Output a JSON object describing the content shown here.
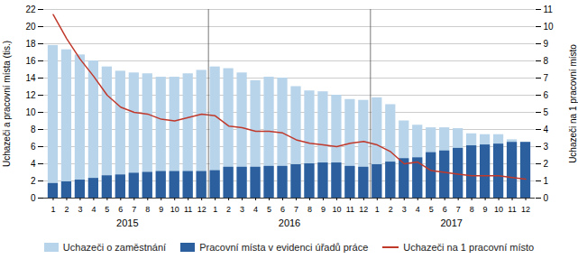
{
  "chart_data": {
    "type": "bar",
    "categories": [
      "1",
      "2",
      "3",
      "4",
      "5",
      "6",
      "7",
      "8",
      "9",
      "10",
      "11",
      "12",
      "1",
      "2",
      "3",
      "4",
      "5",
      "6",
      "7",
      "8",
      "9",
      "10",
      "11",
      "12",
      "1",
      "2",
      "3",
      "4",
      "5",
      "6",
      "7",
      "8",
      "9",
      "10",
      "11",
      "12"
    ],
    "series": [
      {
        "name": "Uchazeči o zaměstnání",
        "type": "bar",
        "color": "#b8d4ea",
        "values": [
          17.8,
          17.3,
          16.7,
          16.0,
          15.3,
          14.8,
          14.6,
          14.5,
          14.1,
          14.1,
          14.5,
          14.9,
          15.3,
          15.1,
          14.6,
          13.7,
          14.1,
          14.0,
          13.0,
          12.5,
          12.4,
          12.0,
          11.5,
          11.4,
          11.7,
          10.9,
          9.0,
          8.5,
          8.2,
          8.2,
          8.1,
          7.5,
          7.4,
          7.4,
          6.8,
          6.5
        ]
      },
      {
        "name": "Pracovní místa v evidenci úřadů práce",
        "type": "bar",
        "color": "#2b5f9e",
        "values": [
          1.7,
          1.9,
          2.1,
          2.3,
          2.6,
          2.7,
          2.9,
          3.0,
          3.1,
          3.1,
          3.1,
          3.1,
          3.2,
          3.6,
          3.6,
          3.6,
          3.7,
          3.7,
          3.9,
          4.0,
          4.1,
          4.1,
          3.7,
          3.6,
          3.9,
          4.2,
          4.6,
          4.7,
          5.3,
          5.5,
          5.8,
          6.1,
          6.2,
          6.3,
          6.5,
          6.5
        ]
      },
      {
        "name": "Uchazeči na 1 pracovní místo",
        "type": "line",
        "color": "#c0392b",
        "axis": "y2",
        "values": [
          10.7,
          9.3,
          8.1,
          7.1,
          6.0,
          5.3,
          5.0,
          4.9,
          4.6,
          4.5,
          4.7,
          4.9,
          4.8,
          4.2,
          4.1,
          3.9,
          3.9,
          3.8,
          3.4,
          3.2,
          3.1,
          3.0,
          3.2,
          3.3,
          3.1,
          2.7,
          2.0,
          2.1,
          1.6,
          1.5,
          1.4,
          1.3,
          1.3,
          1.3,
          1.2,
          1.1
        ]
      }
    ],
    "ylabel": "Uchazeči a pracovní místa (tis.)",
    "y2label": "Uchazeči na 1 pracovní místo",
    "ylim": [
      0,
      22
    ],
    "yticks": [
      0,
      2,
      4,
      6,
      8,
      10,
      12,
      14,
      16,
      18,
      20,
      22
    ],
    "y2lim": [
      0,
      11
    ],
    "y2ticks": [
      0,
      1,
      2,
      3,
      4,
      5,
      6,
      7,
      8,
      9,
      10,
      11
    ],
    "stacked": false,
    "grid": true,
    "legend": "bottom",
    "annotations": [
      "2015",
      "2016",
      "2017"
    ]
  }
}
